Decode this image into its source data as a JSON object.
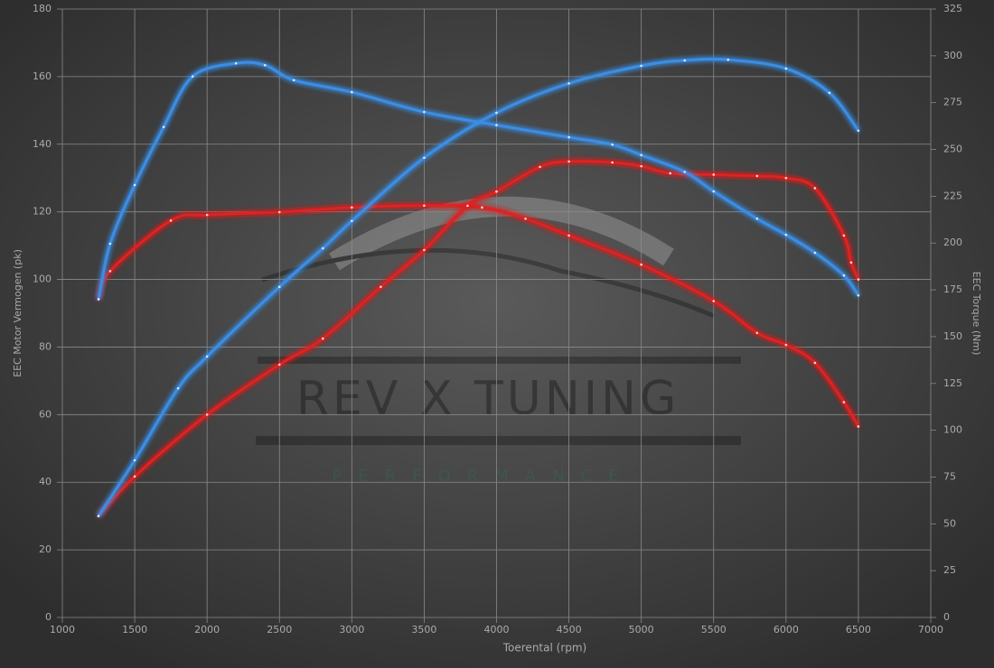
{
  "chart_data": {
    "type": "line",
    "xlabel": "Toerental (rpm)",
    "ylabel": "EEC Motor Vermogen (pk)",
    "y2label": "EEC Torque (Nm)",
    "watermark": "REV X TUNING",
    "watermark_sub": "PERFORMANCE",
    "xlim": [
      1000,
      7000
    ],
    "xticks": [
      1000,
      1500,
      2000,
      2500,
      3000,
      3500,
      4000,
      4500,
      5000,
      5500,
      6000,
      6500,
      7000
    ],
    "ylim": [
      0,
      180
    ],
    "yticks": [
      0,
      20,
      40,
      60,
      80,
      100,
      120,
      140,
      160,
      180
    ],
    "y2lim": [
      0,
      325
    ],
    "y2ticks": [
      0,
      25,
      50,
      75,
      100,
      125,
      150,
      175,
      200,
      225,
      250,
      275,
      300,
      325
    ],
    "grid": true,
    "series": [
      {
        "color": "#e02020",
        "axis": "y2",
        "x": [
          1250,
          1330,
          1750,
          2000,
          2500,
          3000,
          3500,
          3900,
          4200,
          4500,
          5000,
          5500,
          5800,
          6000,
          6200,
          6400,
          6500
        ],
        "values": [
          170,
          185,
          212,
          215,
          216.5,
          219,
          220,
          219,
          213,
          204,
          188.5,
          169,
          152,
          145.6,
          136,
          115,
          102
        ]
      },
      {
        "color": "#e02020",
        "axis": "y",
        "x": [
          1250,
          1500,
          2000,
          2500,
          2800,
          3200,
          3500,
          3800,
          4000,
          4300,
          4500,
          4800,
          5000,
          5200,
          5500,
          5800,
          6000,
          6200,
          6400,
          6450,
          6500
        ],
        "values": [
          30,
          41.7,
          60,
          74.8,
          82.5,
          97.8,
          108.7,
          121.8,
          126,
          133.3,
          134.9,
          134.6,
          133.5,
          131.4,
          131,
          130.6,
          130,
          127,
          113,
          105,
          100
        ]
      },
      {
        "color": "#3a8ee6",
        "axis": "y2",
        "x": [
          1250,
          1330,
          1500,
          1700,
          1900,
          2200,
          2400,
          2600,
          3000,
          3500,
          4000,
          4500,
          4800,
          5000,
          5300,
          5500,
          5800,
          6000,
          6200,
          6400,
          6500
        ],
        "values": [
          170,
          199.6,
          231,
          262,
          289,
          296,
          295,
          287,
          280.6,
          270,
          263,
          256.5,
          252.6,
          247,
          238,
          227.6,
          213,
          204.4,
          194.8,
          182.7,
          172
        ]
      },
      {
        "color": "#3a8ee6",
        "axis": "y",
        "x": [
          1250,
          1500,
          1800,
          2000,
          2500,
          2800,
          3000,
          3500,
          4000,
          4500,
          5000,
          5300,
          5600,
          6000,
          6300,
          6500
        ],
        "values": [
          30,
          46.5,
          67.8,
          77.2,
          97.8,
          109.2,
          117.3,
          136,
          149.3,
          158,
          163.2,
          164.8,
          165,
          162.4,
          155.2,
          144
        ]
      }
    ]
  }
}
